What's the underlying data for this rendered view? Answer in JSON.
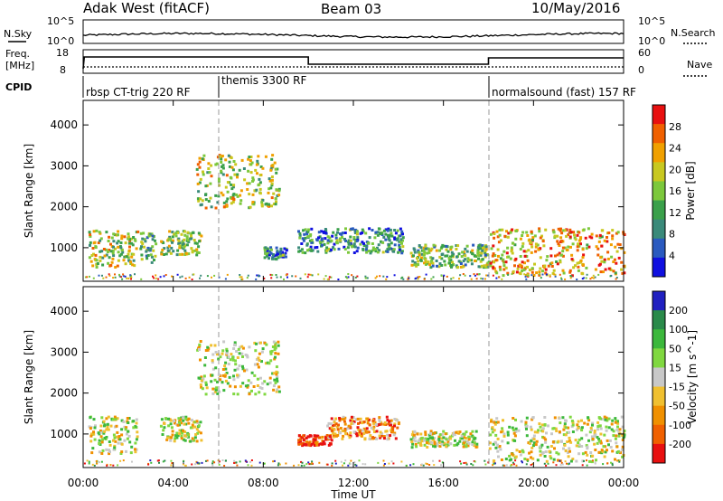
{
  "header": {
    "station": "Adak West (fitACF)",
    "beam": "Beam 03",
    "date": "10/May/2016"
  },
  "summary_panel": {
    "left_label_top": "N.Sky",
    "left_label_freq_line1": "Freq.",
    "left_label_freq_line2": "[MHz]",
    "left_label_cpid": "CPID",
    "right_label_search": "N.Search",
    "right_label_nave": "Nave",
    "nsky_ticks": [
      "10^5",
      "10^0"
    ],
    "nsearch_ticks": [
      "10^5",
      "10^0"
    ],
    "freq_ticks": [
      "18",
      "8"
    ],
    "nave_ticks": [
      "60",
      "0"
    ]
  },
  "cpid_segments": [
    {
      "label": "rbsp CT-trig 220 RF",
      "start": 0,
      "end": 6
    },
    {
      "label": "themis 3300 RF",
      "start": 6,
      "end": 18
    },
    {
      "label": "normalsound (fast) 157 RF",
      "start": 18,
      "end": 24
    }
  ],
  "axes": {
    "y_label": "Slant Range [km]",
    "x_label": "Time UT",
    "x_ticks": [
      "00:00",
      "04:00",
      "08:00",
      "12:00",
      "16:00",
      "20:00",
      "00:00"
    ],
    "y_ticks": [
      "1000",
      "2000",
      "3000",
      "4000"
    ]
  },
  "chart_data": [
    {
      "type": "heatmap",
      "title": "Power [dB]",
      "xlabel": "Time UT",
      "ylabel": "Slant Range [km]",
      "xlim": [
        0,
        24
      ],
      "ylim": [
        180,
        4600
      ],
      "colorbar_ticks": [
        4,
        8,
        12,
        16,
        20,
        24,
        28
      ],
      "colorbar_label": "Power [dB]",
      "colors": [
        "#1010e0",
        "#2a5abf",
        "#3a8a7a",
        "#3aa04a",
        "#7cc83c",
        "#c8c820",
        "#f0a000",
        "#f06000",
        "#e81010"
      ],
      "regions": [
        {
          "t": [
            0.2,
            2.4
          ],
          "r": [
            550,
            1450
          ],
          "level": 0.55
        },
        {
          "t": [
            2.5,
            3.2
          ],
          "r": [
            650,
            1400
          ],
          "level": 0.4
        },
        {
          "t": [
            3.4,
            5.2
          ],
          "r": [
            850,
            1450
          ],
          "level": 0.5
        },
        {
          "t": [
            5.0,
            8.7
          ],
          "r": [
            2000,
            3300
          ],
          "level": 0.55
        },
        {
          "t": [
            8.0,
            9.0
          ],
          "r": [
            750,
            1050
          ],
          "level": 0.3
        },
        {
          "t": [
            9.5,
            14.2
          ],
          "r": [
            900,
            1500
          ],
          "level": 0.3
        },
        {
          "t": [
            14.5,
            18.0
          ],
          "r": [
            550,
            1100
          ],
          "level": 0.45
        },
        {
          "t": [
            18.0,
            24.0
          ],
          "r": [
            350,
            1500
          ],
          "level": 0.7
        }
      ]
    },
    {
      "type": "heatmap",
      "title": "Velocity [m s^-1]",
      "xlabel": "Time UT",
      "ylabel": "Slant Range [km]",
      "xlim": [
        0,
        24
      ],
      "ylim": [
        180,
        4600
      ],
      "colorbar_ticks": [
        200,
        100,
        50,
        15,
        -15,
        -50,
        -100,
        -200
      ],
      "colorbar_label": "Velocity [m s^-1]",
      "colors": [
        "#2020c0",
        "#2a8a4a",
        "#3cb83c",
        "#80d840",
        "#c8c8c8",
        "#f0c030",
        "#f09000",
        "#f06000",
        "#e81010"
      ],
      "regions": [
        {
          "t": [
            0.2,
            2.4
          ],
          "r": [
            550,
            1450
          ],
          "level": 0.5
        },
        {
          "t": [
            3.4,
            5.2
          ],
          "r": [
            850,
            1450
          ],
          "level": 0.5
        },
        {
          "t": [
            5.0,
            8.7
          ],
          "r": [
            2000,
            3300
          ],
          "level": 0.5
        },
        {
          "t": [
            9.5,
            11.0
          ],
          "r": [
            750,
            1000
          ],
          "level": 0.92
        },
        {
          "t": [
            10.8,
            14.0
          ],
          "r": [
            900,
            1450
          ],
          "level": 0.75
        },
        {
          "t": [
            14.5,
            17.5
          ],
          "r": [
            700,
            1100
          ],
          "level": 0.5
        },
        {
          "t": [
            18.0,
            24.0
          ],
          "r": [
            350,
            1450
          ],
          "level": 0.5
        }
      ]
    }
  ]
}
